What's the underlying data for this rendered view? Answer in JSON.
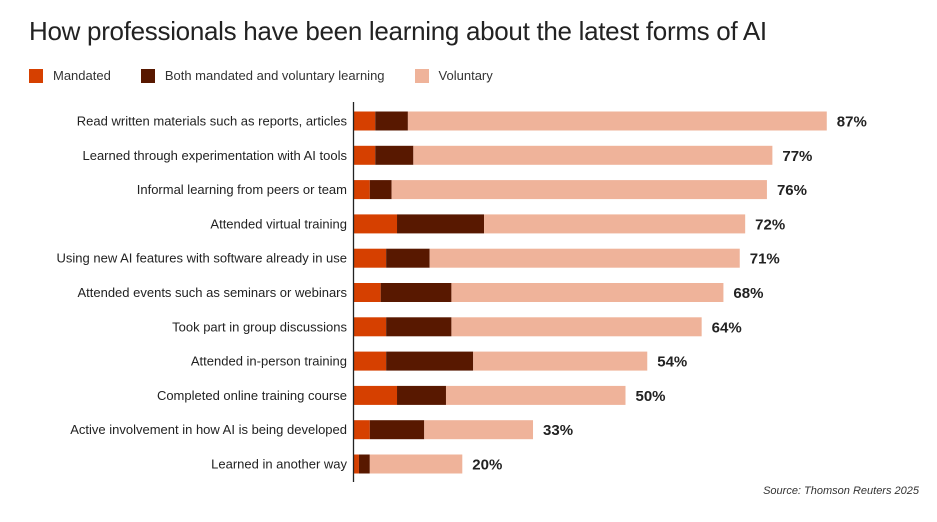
{
  "chart_data": {
    "type": "bar",
    "orientation": "horizontal",
    "stacked": true,
    "title": "How professionals have been learning about the latest forms of AI",
    "source": "Source: Thomson Reuters 2025",
    "colors": {
      "Mandated": "#d64000",
      "Both mandated and voluntary learning": "#581800",
      "Voluntary": "#efb39a"
    },
    "categories": [
      "Read written materials such as reports, articles",
      "Learned through experimentation with AI tools",
      "Informal learning from peers or team",
      "Attended virtual training",
      "Using new AI features with software already in use",
      "Attended events such as seminars or webinars",
      "Took part in group discussions",
      "Attended in-person training",
      "Completed online training course",
      "Active involvement in how AI is being developed",
      "Learned in another way"
    ],
    "series": [
      {
        "name": "Mandated",
        "values": [
          4,
          4,
          3,
          8,
          6,
          5,
          6,
          6,
          8,
          3,
          1
        ]
      },
      {
        "name": "Both mandated and voluntary learning",
        "values": [
          6,
          7,
          4,
          16,
          8,
          13,
          12,
          16,
          9,
          10,
          2
        ]
      },
      {
        "name": "Voluntary",
        "values": [
          77,
          66,
          69,
          48,
          57,
          50,
          46,
          32,
          33,
          20,
          17
        ]
      }
    ],
    "totals": [
      87,
      77,
      76,
      72,
      71,
      68,
      64,
      54,
      50,
      33,
      20
    ],
    "total_labels": [
      "87%",
      "77%",
      "76%",
      "72%",
      "71%",
      "68%",
      "64%",
      "54%",
      "50%",
      "33%",
      "20%"
    ],
    "xlim": [
      0,
      100
    ],
    "grid": false,
    "legend_position": "top-left"
  }
}
